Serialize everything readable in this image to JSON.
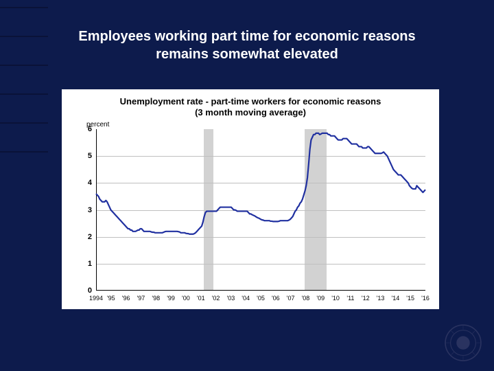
{
  "slide": {
    "title": "Employees working part time for economic reasons remains somewhat elevated"
  },
  "chart": {
    "type": "line",
    "title_line1": "Unemployment rate - part-time workers for economic reasons",
    "title_line2": "(3 month moving average)",
    "ylabel": "percent",
    "ylim": [
      0,
      6
    ],
    "ytick_step": 1,
    "xlabels": [
      "1994",
      "'95",
      "'96",
      "'97",
      "'98",
      "'99",
      "'00",
      "'01",
      "'02",
      "'03",
      "'04",
      "'05",
      "'06",
      "'07",
      "'08",
      "'09",
      "'10",
      "'11",
      "'12",
      "'13",
      "'14",
      "'15",
      "'16"
    ],
    "xcount": 23,
    "line_color": "#2030a0",
    "line_width": 2.2,
    "grid_color": "#bfbfbf",
    "background_color": "#ffffff",
    "shaded_ranges": [
      {
        "start": 7.2,
        "end": 7.85
      },
      {
        "start": 13.95,
        "end": 15.4
      }
    ],
    "series": [
      3.6,
      3.55,
      3.5,
      3.4,
      3.35,
      3.3,
      3.3,
      3.3,
      3.35,
      3.3,
      3.2,
      3.1,
      3.0,
      2.95,
      2.9,
      2.85,
      2.8,
      2.75,
      2.7,
      2.65,
      2.6,
      2.55,
      2.5,
      2.45,
      2.4,
      2.35,
      2.3,
      2.3,
      2.25,
      2.25,
      2.2,
      2.2,
      2.2,
      2.22,
      2.25,
      2.25,
      2.3,
      2.3,
      2.25,
      2.2,
      2.2,
      2.2,
      2.2,
      2.2,
      2.2,
      2.18,
      2.17,
      2.17,
      2.15,
      2.15,
      2.15,
      2.15,
      2.15,
      2.15,
      2.15,
      2.17,
      2.19,
      2.2,
      2.2,
      2.2,
      2.2,
      2.2,
      2.2,
      2.2,
      2.2,
      2.2,
      2.2,
      2.19,
      2.18,
      2.15,
      2.15,
      2.15,
      2.15,
      2.13,
      2.12,
      2.12,
      2.1,
      2.1,
      2.1,
      2.1,
      2.12,
      2.15,
      2.2,
      2.25,
      2.3,
      2.35,
      2.4,
      2.55,
      2.75,
      2.9,
      2.95,
      2.95,
      2.95,
      2.95,
      2.95,
      2.95,
      2.95,
      2.95,
      2.95,
      3.0,
      3.05,
      3.1,
      3.1,
      3.1,
      3.1,
      3.1,
      3.1,
      3.1,
      3.1,
      3.1,
      3.1,
      3.05,
      3.0,
      3.0,
      2.98,
      2.95,
      2.95,
      2.95,
      2.95,
      2.95,
      2.95,
      2.95,
      2.95,
      2.95,
      2.9,
      2.85,
      2.85,
      2.82,
      2.8,
      2.78,
      2.75,
      2.72,
      2.7,
      2.68,
      2.65,
      2.63,
      2.62,
      2.6,
      2.6,
      2.6,
      2.6,
      2.6,
      2.58,
      2.58,
      2.57,
      2.57,
      2.57,
      2.57,
      2.57,
      2.58,
      2.6,
      2.6,
      2.6,
      2.6,
      2.6,
      2.6,
      2.6,
      2.62,
      2.65,
      2.7,
      2.75,
      2.85,
      2.95,
      3.0,
      3.1,
      3.15,
      3.25,
      3.3,
      3.4,
      3.55,
      3.7,
      3.9,
      4.2,
      4.7,
      5.25,
      5.6,
      5.7,
      5.8,
      5.8,
      5.85,
      5.85,
      5.85,
      5.8,
      5.82,
      5.85,
      5.85,
      5.85,
      5.85,
      5.85,
      5.8,
      5.8,
      5.75,
      5.75,
      5.75,
      5.75,
      5.7,
      5.65,
      5.6,
      5.6,
      5.6,
      5.6,
      5.65,
      5.65,
      5.65,
      5.65,
      5.6,
      5.55,
      5.5,
      5.45,
      5.45,
      5.45,
      5.45,
      5.45,
      5.4,
      5.35,
      5.35,
      5.35,
      5.3,
      5.3,
      5.3,
      5.3,
      5.35,
      5.35,
      5.3,
      5.25,
      5.2,
      5.15,
      5.1,
      5.1,
      5.1,
      5.1,
      5.1,
      5.1,
      5.12,
      5.15,
      5.1,
      5.05,
      5.0,
      4.9,
      4.8,
      4.7,
      4.6,
      4.5,
      4.45,
      4.4,
      4.35,
      4.3,
      4.3,
      4.3,
      4.25,
      4.2,
      4.15,
      4.1,
      4.05,
      4.0,
      3.9,
      3.85,
      3.8,
      3.78,
      3.78,
      3.78,
      3.9,
      3.85,
      3.8,
      3.75,
      3.7,
      3.65,
      3.7,
      3.75
    ]
  },
  "colors": {
    "slide_bg": "#0d1b4c",
    "title_text": "#ffffff"
  }
}
